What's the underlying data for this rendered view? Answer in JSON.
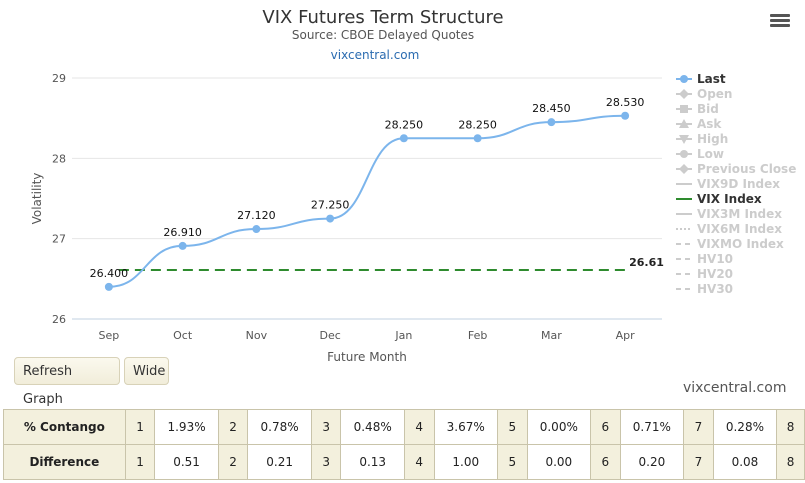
{
  "chart_data": {
    "type": "line",
    "title": "VIX Futures Term Structure",
    "subtitle": "Source: CBOE Delayed Quotes",
    "link_text": "vixcentral.com",
    "xlabel": "Future Month",
    "ylabel": "Volatility",
    "ylim": [
      26,
      29
    ],
    "yticks": [
      26,
      27,
      28,
      29
    ],
    "grid": true,
    "legend_position": "right",
    "categories": [
      "Sep",
      "Oct",
      "Nov",
      "Dec",
      "Jan",
      "Feb",
      "Mar",
      "Apr"
    ],
    "series": [
      {
        "name": "Last",
        "color": "#7cb5ec",
        "values": [
          26.4,
          26.91,
          27.12,
          27.25,
          28.25,
          28.25,
          28.45,
          28.53
        ],
        "labels": [
          "26.400",
          "26.910",
          "27.120",
          "27.250",
          "28.250",
          "28.250",
          "28.450",
          "28.530"
        ]
      }
    ],
    "reference_line": {
      "name": "VIX Index",
      "value": 26.61,
      "label": "26.61",
      "color": "#2e8b2e",
      "style": "dashed"
    },
    "legend": [
      {
        "name": "Last",
        "active": true,
        "symbol": "circle-line"
      },
      {
        "name": "Open",
        "active": false,
        "symbol": "diamond-line"
      },
      {
        "name": "Bid",
        "active": false,
        "symbol": "square-line"
      },
      {
        "name": "Ask",
        "active": false,
        "symbol": "triangle-line"
      },
      {
        "name": "High",
        "active": false,
        "symbol": "triangle-down-line"
      },
      {
        "name": "Low",
        "active": false,
        "symbol": "circle-line"
      },
      {
        "name": "Previous Close",
        "active": false,
        "symbol": "diamond-line"
      },
      {
        "name": "VIX9D Index",
        "active": false,
        "symbol": "line"
      },
      {
        "name": "VIX Index",
        "active": true,
        "symbol": "line-green"
      },
      {
        "name": "VIX3M Index",
        "active": false,
        "symbol": "line"
      },
      {
        "name": "VIX6M Index",
        "active": false,
        "symbol": "dotted"
      },
      {
        "name": "VIXMO Index",
        "active": false,
        "symbol": "dashed"
      },
      {
        "name": "HV10",
        "active": false,
        "symbol": "dashed"
      },
      {
        "name": "HV20",
        "active": false,
        "symbol": "dashed"
      },
      {
        "name": "HV30",
        "active": false,
        "symbol": "dashed"
      }
    ]
  },
  "buttons": {
    "refresh": "Refresh Graph",
    "wide": "Wide"
  },
  "watermark": "vixcentral.com",
  "menu_icon": "hamburger-menu-icon",
  "contango_table": {
    "rows": [
      {
        "label": "% Contango",
        "cells": [
          {
            "idx": "1",
            "val": "1.93%"
          },
          {
            "idx": "2",
            "val": "0.78%"
          },
          {
            "idx": "3",
            "val": "0.48%"
          },
          {
            "idx": "4",
            "val": "3.67%"
          },
          {
            "idx": "5",
            "val": "0.00%"
          },
          {
            "idx": "6",
            "val": "0.71%"
          },
          {
            "idx": "7",
            "val": "0.28%"
          }
        ],
        "last_idx": "8"
      },
      {
        "label": "Difference",
        "cells": [
          {
            "idx": "1",
            "val": "0.51"
          },
          {
            "idx": "2",
            "val": "0.21"
          },
          {
            "idx": "3",
            "val": "0.13"
          },
          {
            "idx": "4",
            "val": "1.00"
          },
          {
            "idx": "5",
            "val": "0.00"
          },
          {
            "idx": "6",
            "val": "0.20"
          },
          {
            "idx": "7",
            "val": "0.08"
          }
        ],
        "last_idx": "8"
      }
    ]
  }
}
